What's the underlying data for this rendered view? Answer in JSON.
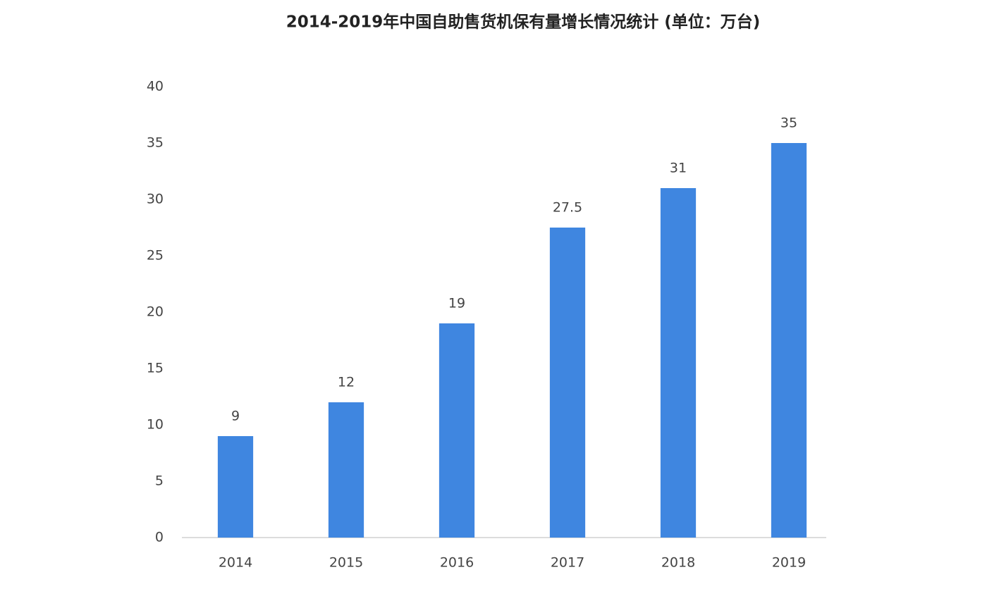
{
  "chart_data": {
    "type": "bar",
    "title": "2014-2019年中国自助售货机保有量增长情况统计 (单位：万台)",
    "categories": [
      "2014",
      "2015",
      "2016",
      "2017",
      "2018",
      "2019"
    ],
    "values": [
      9,
      12,
      19,
      27.5,
      31,
      35
    ],
    "color": "#3f86e0",
    "ylim": [
      0,
      40
    ],
    "yticks": [
      0,
      5,
      10,
      15,
      20,
      25,
      30,
      35,
      40
    ],
    "grid": false
  }
}
